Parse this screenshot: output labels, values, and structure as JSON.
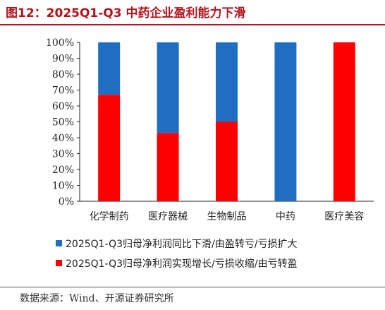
{
  "figure_title": "图12：2025Q1-Q3 中药企业盈利能力下滑",
  "source_note": "数据来源：Wind、开源证券研究所",
  "colors": {
    "title": "#b5121b",
    "series_blue": "#1f6ec1",
    "series_red": "#ff0000"
  },
  "chart_data": {
    "type": "bar",
    "stacked": true,
    "categories": [
      "化学制药",
      "医疗器械",
      "生物制品",
      "中药",
      "医疗美容"
    ],
    "series": [
      {
        "name": "2025Q1-Q3归母净利润实现增长/亏损收缩/由亏转盈",
        "color": "#ff0000",
        "values": [
          67,
          43,
          50,
          0,
          100
        ]
      },
      {
        "name": "2025Q1-Q3归母净利润同比下滑/由盈转亏/亏损扩大",
        "color": "#1f6ec1",
        "values": [
          33,
          57,
          50,
          100,
          0
        ]
      }
    ],
    "ylim": [
      0,
      100
    ],
    "y_ticks": [
      "0%",
      "10%",
      "20%",
      "30%",
      "40%",
      "50%",
      "60%",
      "70%",
      "80%",
      "90%",
      "100%"
    ],
    "legend_position": "bottom",
    "legend_order": [
      1,
      0
    ],
    "grid": false
  }
}
